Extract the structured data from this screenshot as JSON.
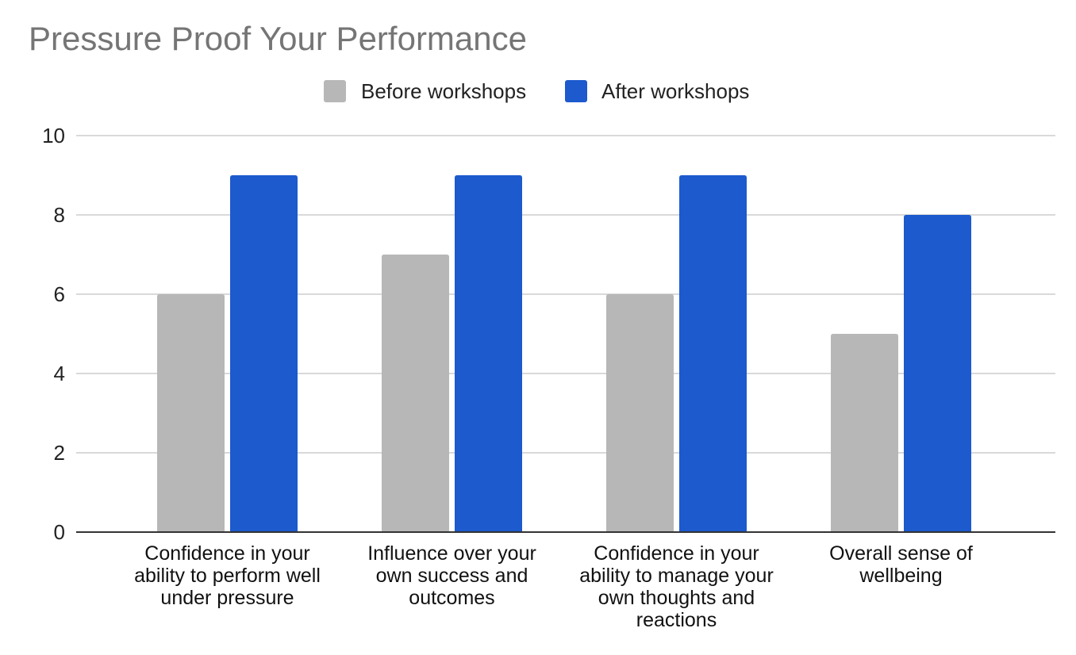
{
  "chart_data": {
    "type": "bar",
    "title": "Pressure Proof Your Performance",
    "xlabel": "",
    "ylabel": "",
    "ylim": [
      0,
      10
    ],
    "yticks": [
      0,
      2,
      4,
      6,
      8,
      10
    ],
    "grid": true,
    "legend_position": "top",
    "categories": [
      [
        "Confidence in your",
        "ability to perform well",
        "under pressure"
      ],
      [
        "Influence over your",
        "own success and",
        "outcomes"
      ],
      [
        "Confidence in your",
        "ability to manage your",
        "own thoughts and",
        "reactions"
      ],
      [
        "Overall sense of",
        "wellbeing"
      ]
    ],
    "series": [
      {
        "name": "Before workshops",
        "color": "#b7b7b7",
        "values": [
          6,
          7,
          6,
          5
        ]
      },
      {
        "name": "After workshops",
        "color": "#1c5acd",
        "values": [
          9,
          9,
          9,
          8
        ]
      }
    ]
  }
}
